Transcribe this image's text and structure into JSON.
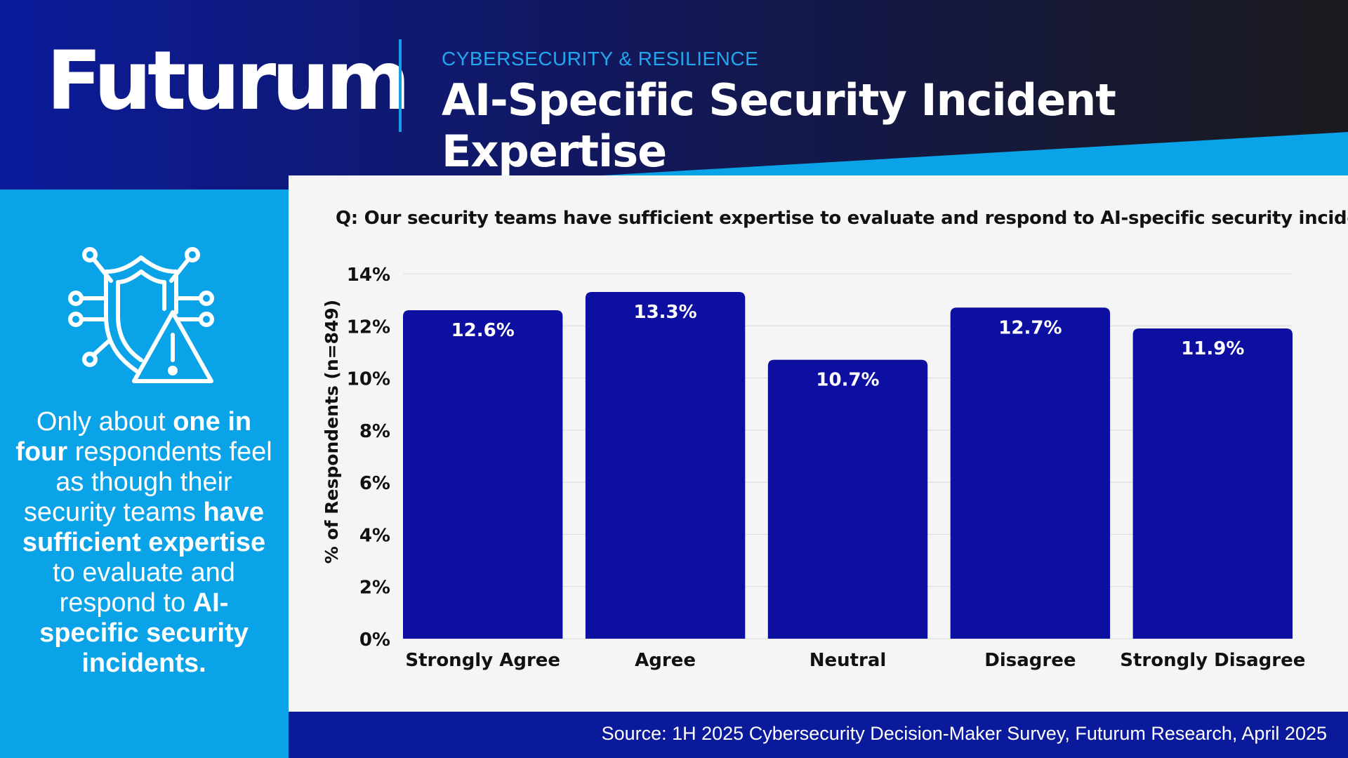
{
  "header": {
    "logo_text": "Futurum",
    "eyebrow": "CYBERSECURITY & RESILIENCE",
    "title": "AI-Specific Security Incident Expertise"
  },
  "sidebar": {
    "icon": "shield-warning-circuit-icon",
    "takeaway_parts": [
      {
        "text": "Only about ",
        "bold": false
      },
      {
        "text": "one in four",
        "bold": true
      },
      {
        "text": " respondents feel as though their security teams ",
        "bold": false
      },
      {
        "text": "have sufficient expertise",
        "bold": true
      },
      {
        "text": " to evaluate and respond to ",
        "bold": false
      },
      {
        "text": "AI-specific security incidents.",
        "bold": true
      }
    ]
  },
  "chart_data": {
    "type": "bar",
    "title": "Q: Our security teams have sufficient expertise to evaluate and respond to AI-specific security incidents.",
    "xlabel": "",
    "ylabel": "% of Respondents (n=849)",
    "categories": [
      "Strongly Agree",
      "Agree",
      "Neutral",
      "Disagree",
      "Strongly Disagree"
    ],
    "values": [
      12.6,
      13.3,
      10.7,
      12.7,
      11.9
    ],
    "value_labels": [
      "12.6%",
      "13.3%",
      "10.7%",
      "12.7%",
      "11.9%"
    ],
    "ylim": [
      0,
      14
    ],
    "yticks": [
      0,
      2,
      4,
      6,
      8,
      10,
      12,
      14
    ],
    "ytick_labels": [
      "0%",
      "2%",
      "4%",
      "6%",
      "8%",
      "10%",
      "12%",
      "14%"
    ],
    "grid": true,
    "bar_color": "#0c0fa0"
  },
  "footer": {
    "source": "Source: 1H 2025 Cybersecurity Decision-Maker Survey, Futurum Research, April 2025"
  },
  "colors": {
    "navy": "#0b1a9a",
    "accent_blue": "#0aa3e8",
    "bar": "#0c0fa0"
  }
}
